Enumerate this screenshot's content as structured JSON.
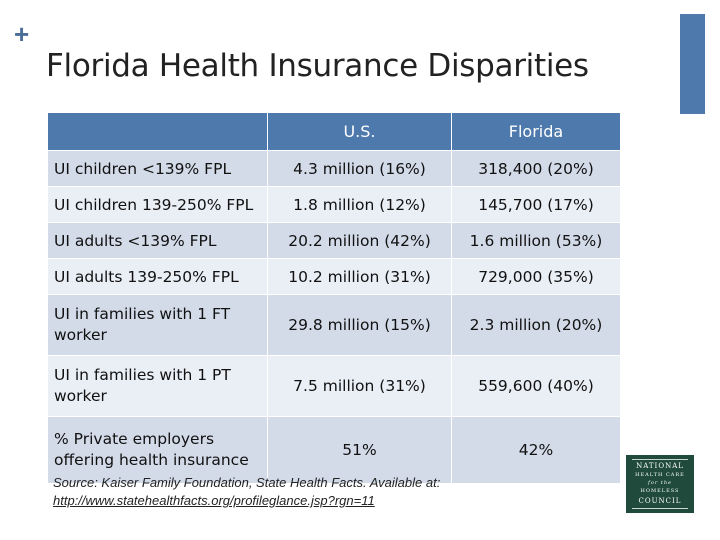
{
  "slide": {
    "title": "Florida Health Insurance Disparities",
    "plus_glyph": "+"
  },
  "table": {
    "headers": [
      "",
      "U.S.",
      "Florida"
    ],
    "rows": [
      {
        "label": "UI children <139% FPL",
        "us": "4.3 million (16%)",
        "florida": "318,400 (20%)"
      },
      {
        "label": "UI children 139-250% FPL",
        "us": "1.8 million (12%)",
        "florida": "145,700 (17%)"
      },
      {
        "label": "UI adults <139% FPL",
        "us": "20.2 million (42%)",
        "florida": "1.6 million (53%)"
      },
      {
        "label": "UI adults 139-250% FPL",
        "us": "10.2 million (31%)",
        "florida": "729,000 (35%)"
      },
      {
        "label": "UI in families with 1 FT worker",
        "us": "29.8 million (15%)",
        "florida": "2.3 million (20%)"
      },
      {
        "label": "UI in families with 1 PT worker",
        "us": "7.5 million (31%)",
        "florida": "559,600 (40%)"
      },
      {
        "label": "% Private employers offering health insurance",
        "us": "51%",
        "florida": "42%"
      }
    ]
  },
  "source": {
    "text": "Source:  Kaiser Family Foundation, State Health Facts.  Available at:",
    "link": "http://www.statehealthfacts.org/profileglance.jsp?rgn=11"
  },
  "logo": {
    "line1": "NATIONAL",
    "line2": "HEALTH CARE",
    "line3": "for the",
    "line4": "HOMELESS",
    "line5": "COUNCIL"
  },
  "colors": {
    "header_bg": "#4e79ad",
    "row_dark": "#d3dbe9",
    "row_light": "#eaeef5",
    "logo_bg": "#1f4a3c"
  }
}
